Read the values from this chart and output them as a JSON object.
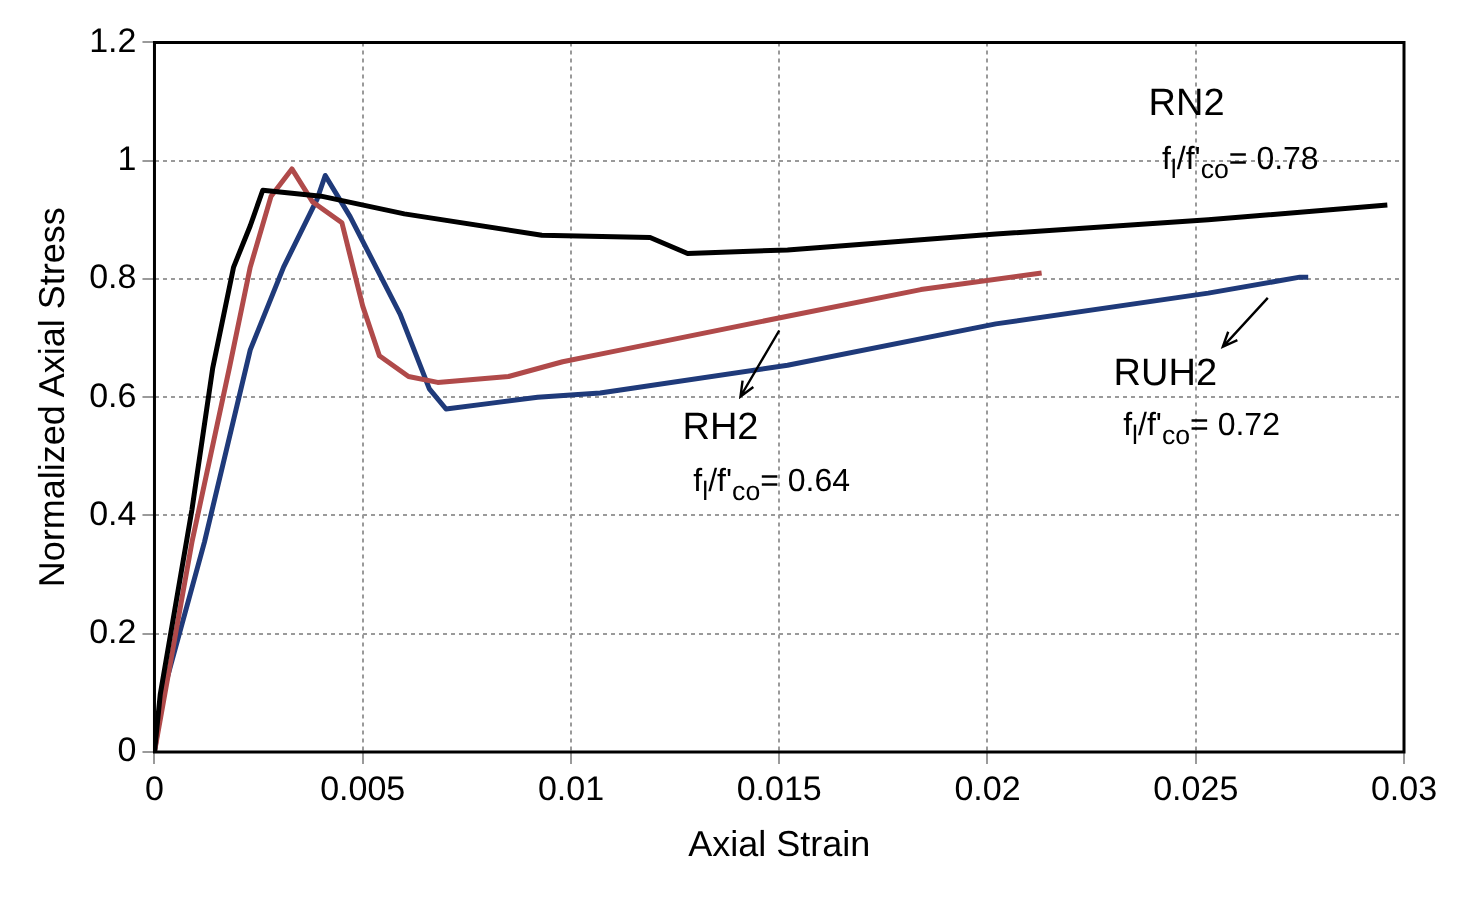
{
  "chart_data": {
    "type": "line",
    "xlabel": "Axial Strain",
    "ylabel": "Normalized Axial Stress",
    "xlim": [
      0,
      0.03
    ],
    "xticks": [
      0,
      0.005,
      0.01,
      0.015,
      0.02,
      0.025,
      0.03
    ],
    "ylim": [
      0,
      1.2
    ],
    "yticks": [
      0,
      0.2,
      0.4,
      0.6,
      0.8,
      1,
      1.2
    ],
    "grid": true,
    "series": [
      {
        "color": "#000000",
        "x": [
          0,
          0.00014,
          0.0009,
          0.0014,
          0.0019,
          0.0023,
          0.0026,
          0.004,
          0.006,
          0.0093,
          0.0119,
          0.0128,
          0.0152,
          0.0202,
          0.0253,
          0.0296
        ],
        "values": [
          0,
          0.098,
          0.41,
          0.65,
          0.82,
          0.89,
          0.95,
          0.94,
          0.91,
          0.874,
          0.87,
          0.843,
          0.849,
          0.876,
          0.9,
          0.925
        ]
      },
      {
        "color": "#b04a4a",
        "x": [
          0,
          0.0009,
          0.0018,
          0.0023,
          0.0028,
          0.0033,
          0.0038,
          0.0045,
          0.005,
          0.0054,
          0.0061,
          0.0068,
          0.0085,
          0.0098,
          0.011,
          0.0152,
          0.0184,
          0.0213
        ],
        "values": [
          0,
          0.355,
          0.65,
          0.82,
          0.94,
          0.986,
          0.93,
          0.895,
          0.754,
          0.67,
          0.635,
          0.625,
          0.635,
          0.66,
          0.677,
          0.737,
          0.782,
          0.81
        ]
      },
      {
        "color": "#1f3a7a",
        "x": [
          0,
          0.0002,
          0.0012,
          0.0023,
          0.0031,
          0.0039,
          0.0041,
          0.0047,
          0.0059,
          0.0066,
          0.007,
          0.0081,
          0.0092,
          0.0107,
          0.0152,
          0.0202,
          0.0253,
          0.0275,
          0.0277
        ],
        "values": [
          0,
          0.098,
          0.355,
          0.68,
          0.82,
          0.934,
          0.975,
          0.905,
          0.74,
          0.614,
          0.58,
          0.59,
          0.6,
          0.607,
          0.654,
          0.724,
          0.776,
          0.803,
          0.803
        ]
      }
    ],
    "annotations": [
      "RN2",
      "f$_{l}$/f'$_{co}$= 0.78",
      "RH2",
      "f$_{l}$/f'$_{co}$= 0.64",
      "RUH2",
      "f$_{l}$/f'$_{co}$= 0.72"
    ]
  }
}
